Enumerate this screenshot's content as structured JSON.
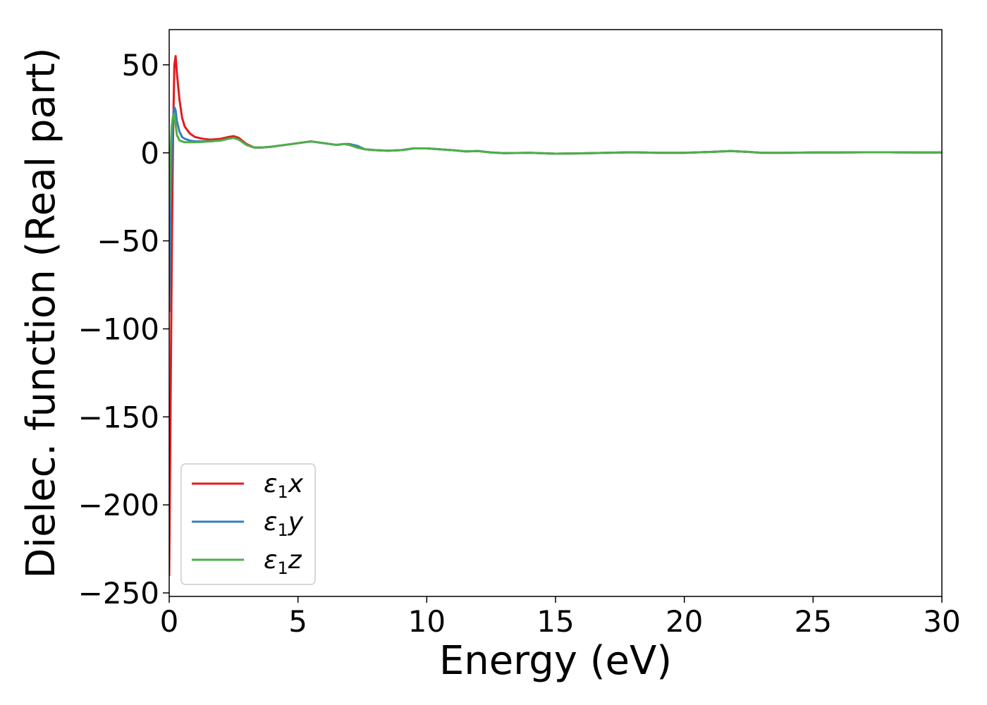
{
  "chart_data": {
    "type": "line",
    "xlabel": "Energy (eV)",
    "ylabel": "Dielec. function (Real part)",
    "xlim": [
      0,
      30
    ],
    "ylim": [
      -252,
      70
    ],
    "xticks": [
      0,
      5,
      10,
      15,
      20,
      25,
      30
    ],
    "yticks": [
      50,
      0,
      -50,
      -100,
      -150,
      -200,
      -250
    ],
    "xtick_labels": [
      "0",
      "5",
      "10",
      "15",
      "20",
      "25",
      "30"
    ],
    "ytick_labels": [
      "50",
      "0",
      "−50",
      "−100",
      "−150",
      "−200",
      "−250"
    ],
    "legend_position": "lower-left",
    "grid": false,
    "series": [
      {
        "name": "ε₁x",
        "legend_base": "ε",
        "legend_sub": "1",
        "legend_var": "x",
        "color": "#e41a1c",
        "x": [
          0.0,
          0.05,
          0.1,
          0.15,
          0.2,
          0.25,
          0.3,
          0.4,
          0.5,
          0.6,
          0.8,
          1.0,
          1.3,
          1.6,
          2.0,
          2.3,
          2.5,
          2.7,
          3.0,
          3.3,
          3.6,
          4.0,
          4.5,
          5.0,
          5.5,
          6.0,
          6.5,
          6.8,
          7.0,
          7.3,
          7.6,
          8.0,
          8.5,
          9.0,
          9.5,
          10.0,
          10.5,
          11.0,
          11.5,
          12.0,
          12.5,
          13.0,
          14.0,
          15.0,
          16.0,
          17.0,
          18.0,
          19.0,
          20.0,
          21.0,
          21.8,
          22.5,
          23.0,
          24.0,
          25.0,
          26.0,
          27.0,
          28.0,
          29.0,
          30.0
        ],
        "y": [
          -240,
          -150,
          -60,
          10,
          50,
          55,
          45,
          30,
          20,
          15,
          11,
          9,
          8,
          7.5,
          8,
          9,
          9.5,
          8.5,
          5,
          3,
          3,
          3.5,
          4.5,
          5.5,
          6.5,
          5.5,
          4.5,
          5,
          4.5,
          3,
          2,
          1.5,
          1.2,
          1.5,
          2.5,
          2.5,
          2,
          1.5,
          0.8,
          1,
          0.2,
          -0.2,
          0,
          -0.5,
          -0.3,
          0,
          0.3,
          0,
          0,
          0.5,
          1,
          0.5,
          0,
          0,
          0.2,
          0.2,
          0.3,
          0.3,
          0.2,
          0.2
        ]
      },
      {
        "name": "ε₁y",
        "legend_base": "ε",
        "legend_sub": "1",
        "legend_var": "y",
        "color": "#377eb8",
        "x": [
          0.0,
          0.05,
          0.1,
          0.15,
          0.2,
          0.25,
          0.3,
          0.4,
          0.5,
          0.6,
          0.8,
          1.0,
          1.3,
          1.6,
          2.0,
          2.3,
          2.5,
          2.7,
          3.0,
          3.3,
          3.6,
          4.0,
          4.5,
          5.0,
          5.5,
          6.0,
          6.5,
          6.8,
          7.0,
          7.3,
          7.6,
          8.0,
          8.5,
          9.0,
          9.5,
          10.0,
          10.5,
          11.0,
          11.5,
          12.0,
          12.5,
          13.0,
          14.0,
          15.0,
          16.0,
          17.0,
          18.0,
          19.0,
          20.0,
          21.0,
          21.8,
          22.5,
          23.0,
          24.0,
          25.0,
          26.0,
          27.0,
          28.0,
          29.0,
          30.0
        ],
        "y": [
          -90,
          -40,
          0,
          20,
          26,
          24,
          18,
          12,
          9,
          8,
          7,
          6.5,
          6.5,
          6.5,
          7,
          8,
          8.5,
          7.5,
          4.5,
          3,
          3,
          3.5,
          4.5,
          5.5,
          6.5,
          5.5,
          4.5,
          5,
          5,
          4,
          2,
          1.5,
          1.2,
          1.5,
          2.5,
          2.5,
          2,
          1.5,
          0.8,
          1,
          0.2,
          -0.2,
          0,
          -0.5,
          -0.3,
          0,
          0.3,
          0,
          0,
          0.5,
          1,
          0.5,
          0,
          0,
          0.2,
          0.2,
          0.3,
          0.3,
          0.2,
          0.2
        ]
      },
      {
        "name": "ε₁z",
        "legend_base": "ε",
        "legend_sub": "1",
        "legend_var": "z",
        "color": "#4daf4a",
        "x": [
          0.0,
          0.05,
          0.1,
          0.15,
          0.2,
          0.25,
          0.3,
          0.4,
          0.5,
          0.6,
          0.8,
          1.0,
          1.3,
          1.6,
          2.0,
          2.3,
          2.5,
          2.7,
          3.0,
          3.3,
          3.6,
          4.0,
          4.5,
          5.0,
          5.5,
          6.0,
          6.5,
          6.8,
          7.0,
          7.3,
          7.6,
          8.0,
          8.5,
          9.0,
          9.5,
          10.0,
          10.5,
          11.0,
          11.5,
          12.0,
          12.5,
          13.0,
          14.0,
          15.0,
          16.0,
          17.0,
          18.0,
          19.0,
          20.0,
          21.0,
          21.8,
          22.5,
          23.0,
          24.0,
          25.0,
          26.0,
          27.0,
          28.0,
          29.0,
          30.0
        ],
        "y": [
          -30,
          0,
          15,
          21,
          22,
          16,
          10,
          7,
          6.5,
          6,
          6,
          6,
          6.2,
          6.5,
          7,
          8,
          8.5,
          7.5,
          4.5,
          3,
          3,
          3.5,
          4.5,
          5.5,
          6.5,
          5.5,
          4.5,
          5,
          4.5,
          3,
          2,
          1.5,
          1.2,
          1.5,
          2.5,
          2.5,
          2,
          1.5,
          0.8,
          1,
          0.2,
          -0.2,
          0,
          -0.5,
          -0.3,
          0,
          0.3,
          0,
          0,
          0.5,
          1,
          0.5,
          0,
          0,
          0.2,
          0.2,
          0.3,
          0.3,
          0.2,
          0.2
        ]
      }
    ]
  }
}
